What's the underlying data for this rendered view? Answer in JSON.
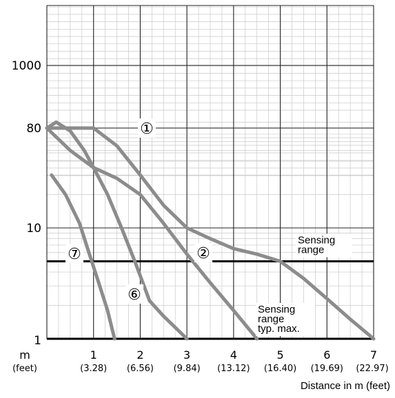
{
  "chart_data": {
    "type": "line",
    "title": "",
    "xlabel": "Distance in m (feet)",
    "ylabel": "",
    "x_unit_label": "m",
    "x_alt_unit_label": "(feet)",
    "y_scale": "log",
    "xlim": [
      0,
      7
    ],
    "x_ticks": [
      {
        "value": 1,
        "label": "1",
        "feet": "(3.28)"
      },
      {
        "value": 2,
        "label": "2",
        "feet": "(6.56)"
      },
      {
        "value": 3,
        "label": "3",
        "feet": "(9.84)"
      },
      {
        "value": 4,
        "label": "4",
        "feet": "(13.12)"
      },
      {
        "value": 5,
        "label": "5",
        "feet": "(16.40)"
      },
      {
        "value": 6,
        "label": "6",
        "feet": "(19.69)"
      },
      {
        "value": 7,
        "label": "7",
        "feet": "(22.97)"
      }
    ],
    "y_ticks": [
      {
        "value": 1,
        "label": "1"
      },
      {
        "value": 10,
        "label": "10"
      },
      {
        "value": 80,
        "label": "80"
      },
      {
        "value": 1000,
        "label": "1000"
      }
    ],
    "grid": true,
    "series": [
      {
        "name": "①",
        "color": "#8c8c8c",
        "x": [
          0,
          0.3,
          1.0,
          1.5,
          2.0,
          2.5,
          3.0,
          3.5,
          4.0,
          4.5,
          5.0,
          5.5,
          6.0,
          6.5,
          7.0
        ],
        "y": [
          80,
          80,
          80,
          55,
          30,
          16,
          10,
          8,
          6.5,
          5.8,
          5,
          3.5,
          2.3,
          1.5,
          1
        ]
      },
      {
        "name": "②",
        "color": "#8c8c8c",
        "x": [
          0,
          0.5,
          1.0,
          1.5,
          2.0,
          2.5,
          3.0,
          3.5,
          4.0,
          4.5
        ],
        "y": [
          80,
          50,
          35,
          28,
          20,
          11,
          5.8,
          3.2,
          1.8,
          1
        ]
      },
      {
        "name": "⑥",
        "color": "#8c8c8c",
        "x": [
          0,
          0.2,
          0.5,
          0.8,
          1.0,
          1.3,
          1.6,
          1.9,
          2.2,
          2.5,
          3.0
        ],
        "y": [
          80,
          90,
          75,
          50,
          35,
          20,
          10,
          4.8,
          2.2,
          1.6,
          1
        ]
      },
      {
        "name": "⑦",
        "color": "#8c8c8c",
        "x": [
          0.1,
          0.4,
          0.7,
          0.9,
          1.1,
          1.3,
          1.45
        ],
        "y": [
          30,
          20,
          11,
          6,
          3.3,
          1.8,
          1
        ]
      }
    ],
    "reference_lines": [
      {
        "label": [
          "Sensing",
          "range"
        ],
        "y": 5
      },
      {
        "label": [
          "Sensing",
          "range",
          "typ. max."
        ],
        "y": 1
      }
    ],
    "annotations": [
      "①",
      "②",
      "⑥",
      "⑦"
    ]
  }
}
